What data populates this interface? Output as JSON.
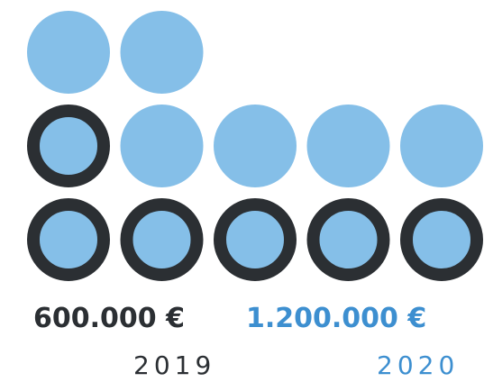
{
  "colors": {
    "dot_fill": "#85bfe8",
    "ring": "#2b2f33",
    "label_2019": "#2b2f33",
    "label_2020": "#3d8fd0"
  },
  "chart_data": {
    "type": "dot-matrix",
    "title": "",
    "unit_value_eur": 100000,
    "categories": [
      "2019",
      "2020"
    ],
    "values": [
      600000,
      1200000
    ],
    "value_labels": [
      "600.000 €",
      "1.200.000 €"
    ],
    "dots": {
      "2019_outlined": 6,
      "2020_total": 12
    }
  }
}
